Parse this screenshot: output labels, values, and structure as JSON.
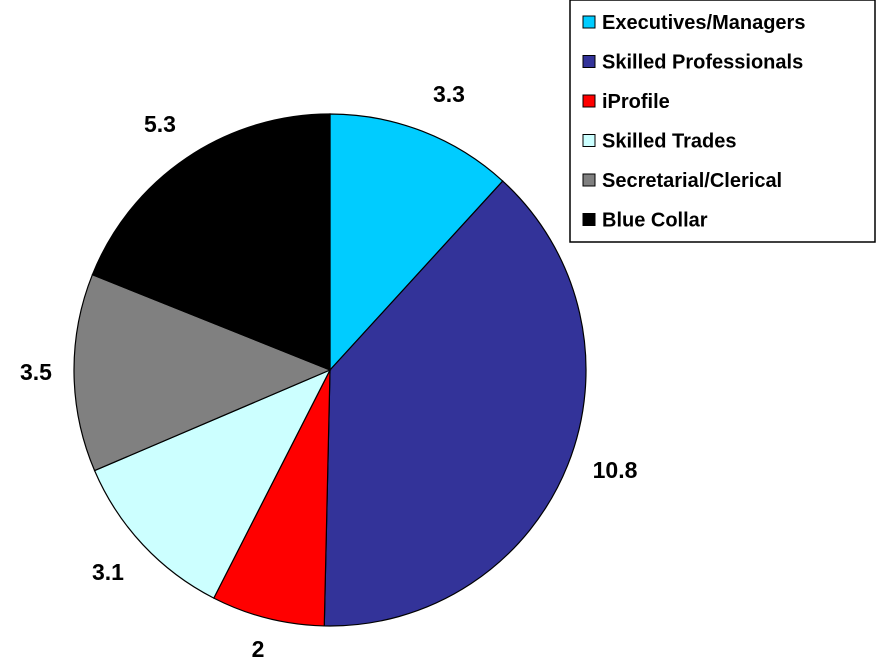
{
  "chart_data": {
    "type": "pie",
    "categories": [
      "Executives/Managers",
      "Skilled Professionals",
      "iProfile",
      "Skilled Trades",
      "Secretarial/Clerical",
      "Blue Collar"
    ],
    "values": [
      3.3,
      10.8,
      2,
      3.1,
      3.5,
      5.3
    ],
    "data_labels": [
      "3.3",
      "10.8",
      "2",
      "3.1",
      "3.5",
      "5.3"
    ],
    "colors": [
      "#00CCFF",
      "#333399",
      "#FF0000",
      "#CCFFFF",
      "#808080",
      "#000000"
    ],
    "start_angle": "12 o'clock",
    "direction": "clockwise",
    "legend_position": "top-right",
    "title": "",
    "xlabel": "",
    "ylabel": ""
  }
}
